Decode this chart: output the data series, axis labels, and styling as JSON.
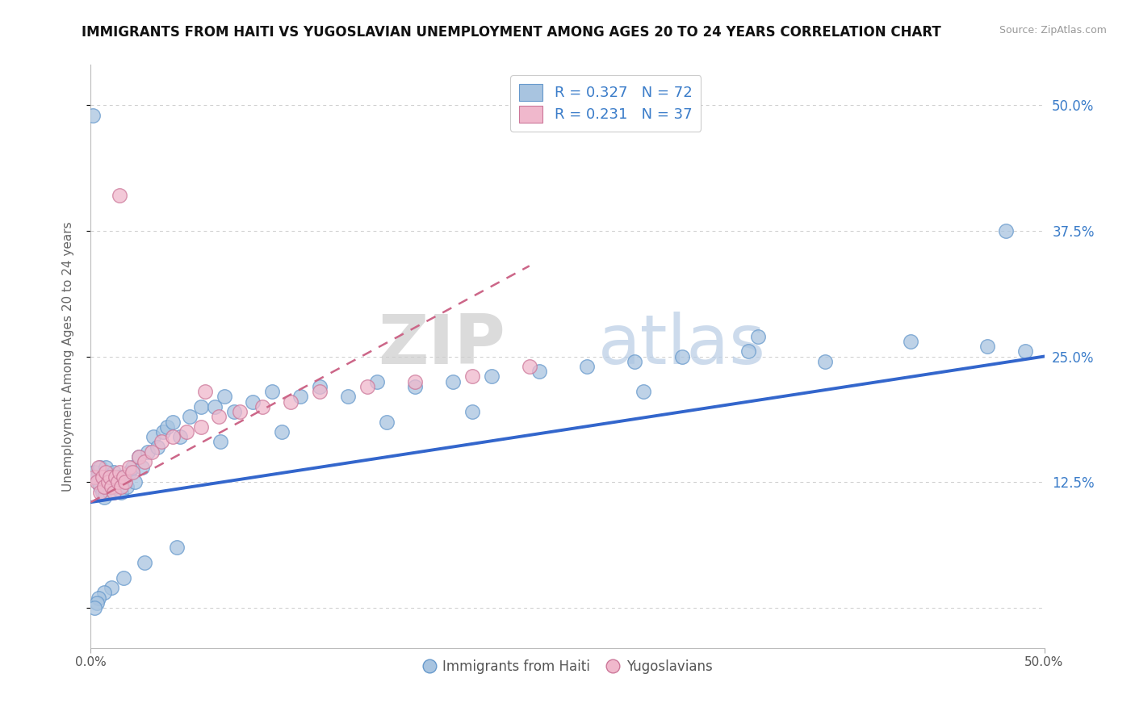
{
  "title": "IMMIGRANTS FROM HAITI VS YUGOSLAVIAN UNEMPLOYMENT AMONG AGES 20 TO 24 YEARS CORRELATION CHART",
  "source": "Source: ZipAtlas.com",
  "ylabel": "Unemployment Among Ages 20 to 24 years",
  "xlim": [
    0.0,
    0.5
  ],
  "ylim": [
    -0.04,
    0.54
  ],
  "haiti_color": "#a8c4e0",
  "haiti_edge_color": "#6699cc",
  "yugo_color": "#f0b8cc",
  "yugo_edge_color": "#cc7799",
  "haiti_line_color": "#3366cc",
  "yugo_line_color": "#cc6688",
  "watermark_zip": "ZIP",
  "watermark_atlas": "atlas",
  "grid_color": "#cccccc",
  "background_color": "#ffffff",
  "title_fontsize": 12,
  "axis_fontsize": 11,
  "legend_fontsize": 13,
  "haiti_trend_x": [
    0.0,
    0.5
  ],
  "haiti_trend_y": [
    0.105,
    0.25
  ],
  "yugo_trend_x": [
    0.0,
    0.23
  ],
  "yugo_trend_y": [
    0.105,
    0.34
  ],
  "haiti_x": [
    0.002,
    0.003,
    0.004,
    0.005,
    0.005,
    0.006,
    0.007,
    0.007,
    0.008,
    0.009,
    0.01,
    0.01,
    0.011,
    0.012,
    0.013,
    0.014,
    0.015,
    0.016,
    0.017,
    0.018,
    0.019,
    0.02,
    0.022,
    0.023,
    0.025,
    0.027,
    0.03,
    0.033,
    0.035,
    0.038,
    0.04,
    0.043,
    0.047,
    0.052,
    0.058,
    0.065,
    0.07,
    0.075,
    0.085,
    0.095,
    0.11,
    0.12,
    0.135,
    0.15,
    0.17,
    0.19,
    0.21,
    0.235,
    0.26,
    0.285,
    0.31,
    0.345,
    0.385,
    0.43,
    0.47,
    0.49,
    0.35,
    0.29,
    0.2,
    0.155,
    0.1,
    0.068,
    0.045,
    0.028,
    0.017,
    0.011,
    0.007,
    0.004,
    0.003,
    0.002,
    0.001,
    0.48
  ],
  "haiti_y": [
    0.135,
    0.13,
    0.125,
    0.12,
    0.14,
    0.115,
    0.11,
    0.13,
    0.14,
    0.125,
    0.13,
    0.115,
    0.12,
    0.135,
    0.125,
    0.12,
    0.13,
    0.115,
    0.125,
    0.13,
    0.12,
    0.135,
    0.14,
    0.125,
    0.15,
    0.14,
    0.155,
    0.17,
    0.16,
    0.175,
    0.18,
    0.185,
    0.17,
    0.19,
    0.2,
    0.2,
    0.21,
    0.195,
    0.205,
    0.215,
    0.21,
    0.22,
    0.21,
    0.225,
    0.22,
    0.225,
    0.23,
    0.235,
    0.24,
    0.245,
    0.25,
    0.255,
    0.245,
    0.265,
    0.26,
    0.255,
    0.27,
    0.215,
    0.195,
    0.185,
    0.175,
    0.165,
    0.06,
    0.045,
    0.03,
    0.02,
    0.015,
    0.01,
    0.005,
    0.0,
    0.49,
    0.375
  ],
  "yugo_x": [
    0.002,
    0.003,
    0.004,
    0.005,
    0.006,
    0.007,
    0.008,
    0.009,
    0.01,
    0.011,
    0.012,
    0.013,
    0.014,
    0.015,
    0.016,
    0.017,
    0.018,
    0.02,
    0.022,
    0.025,
    0.028,
    0.032,
    0.037,
    0.043,
    0.05,
    0.058,
    0.067,
    0.078,
    0.09,
    0.105,
    0.12,
    0.145,
    0.17,
    0.2,
    0.23,
    0.06,
    0.015
  ],
  "yugo_y": [
    0.13,
    0.125,
    0.14,
    0.115,
    0.13,
    0.12,
    0.135,
    0.125,
    0.13,
    0.12,
    0.115,
    0.13,
    0.125,
    0.135,
    0.12,
    0.13,
    0.125,
    0.14,
    0.135,
    0.15,
    0.145,
    0.155,
    0.165,
    0.17,
    0.175,
    0.18,
    0.19,
    0.195,
    0.2,
    0.205,
    0.215,
    0.22,
    0.225,
    0.23,
    0.24,
    0.215,
    0.41
  ]
}
